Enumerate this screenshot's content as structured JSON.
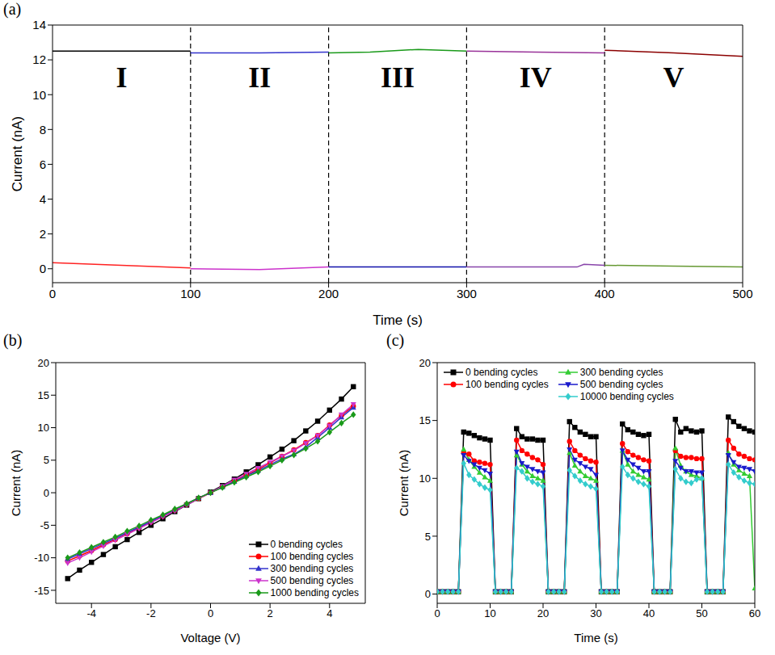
{
  "chart_data": [
    {
      "panel": "(a)",
      "type": "line",
      "x_label": "Time (s)",
      "y_label": "Current (nA)",
      "xlim": [
        0,
        500
      ],
      "xticks": [
        0,
        100,
        200,
        300,
        400,
        500
      ],
      "ylim": [
        -0.8,
        14
      ],
      "yticks": [
        0,
        2,
        4,
        6,
        8,
        10,
        12,
        14
      ],
      "dividers": [
        100,
        200,
        300,
        400
      ],
      "annotations": [
        {
          "text": "I",
          "x": 50,
          "y": 11.0
        },
        {
          "text": "II",
          "x": 150,
          "y": 11.0
        },
        {
          "text": "III",
          "x": 250,
          "y": 11.0
        },
        {
          "text": "IV",
          "x": 350,
          "y": 11.0
        },
        {
          "text": "V",
          "x": 450,
          "y": 11.0
        }
      ],
      "series": [
        {
          "color": "#000000",
          "x": [
            0,
            50,
            100
          ],
          "values": [
            12.5,
            12.5,
            12.5
          ]
        },
        {
          "color": "#3333cc",
          "x": [
            100,
            150,
            200
          ],
          "values": [
            12.4,
            12.4,
            12.45
          ]
        },
        {
          "color": "#1a9a1a",
          "x": [
            200,
            230,
            265,
            300
          ],
          "values": [
            12.4,
            12.45,
            12.6,
            12.5
          ]
        },
        {
          "color": "#993399",
          "x": [
            300,
            350,
            400
          ],
          "values": [
            12.5,
            12.45,
            12.4
          ]
        },
        {
          "color": "#8b0000",
          "x": [
            400,
            450,
            500
          ],
          "values": [
            12.55,
            12.4,
            12.2
          ]
        },
        {
          "color": "#ff2222",
          "x": [
            0,
            50,
            100
          ],
          "values": [
            0.35,
            0.2,
            0.05
          ]
        },
        {
          "color": "#cc33cc",
          "x": [
            100,
            150,
            200
          ],
          "values": [
            0.0,
            -0.05,
            0.1
          ]
        },
        {
          "color": "#1111aa",
          "x": [
            200,
            300
          ],
          "values": [
            0.1,
            0.1
          ]
        },
        {
          "color": "#8844aa",
          "x": [
            300,
            380,
            385,
            400
          ],
          "values": [
            0.1,
            0.1,
            0.25,
            0.2
          ]
        },
        {
          "color": "#669933",
          "x": [
            400,
            450,
            500
          ],
          "values": [
            0.2,
            0.15,
            0.1
          ]
        }
      ]
    },
    {
      "panel": "(b)",
      "type": "line",
      "x_label": "Voltage (V)",
      "y_label": "Current (nA)",
      "xlim": [
        -5.2,
        5.2
      ],
      "xticks": [
        -4,
        -2,
        0,
        2,
        4
      ],
      "ylim": [
        -17,
        20
      ],
      "yticks": [
        -15,
        -10,
        -5,
        0,
        5,
        10,
        15,
        20
      ],
      "legend": "lower right",
      "x": [
        -4.8,
        -4.4,
        -4.0,
        -3.6,
        -3.2,
        -2.8,
        -2.4,
        -2.0,
        -1.6,
        -1.2,
        -0.8,
        -0.4,
        0,
        0.4,
        0.8,
        1.2,
        1.6,
        2.0,
        2.4,
        2.8,
        3.2,
        3.6,
        4.0,
        4.4,
        4.8
      ],
      "series": [
        {
          "name": "0 bending cycles",
          "color": "#000000",
          "marker": "square",
          "values": [
            -13.2,
            -11.9,
            -10.7,
            -9.5,
            -8.3,
            -7.2,
            -6.1,
            -5.0,
            -4.0,
            -2.9,
            -1.9,
            -0.9,
            0.1,
            1.1,
            2.1,
            3.2,
            4.3,
            5.5,
            6.7,
            8.0,
            9.5,
            11.0,
            12.7,
            14.4,
            16.3
          ]
        },
        {
          "name": "100 bending cycles",
          "color": "#ff0000",
          "marker": "circle",
          "values": [
            -10.5,
            -9.7,
            -8.9,
            -8.0,
            -7.2,
            -6.3,
            -5.4,
            -4.5,
            -3.6,
            -2.7,
            -1.8,
            -0.9,
            0,
            0.9,
            1.8,
            2.7,
            3.6,
            4.6,
            5.6,
            6.6,
            7.7,
            8.8,
            10.4,
            11.9,
            13.3
          ]
        },
        {
          "name": "300 bending cycles",
          "color": "#3333cc",
          "marker": "triangle-up",
          "values": [
            -10.2,
            -9.4,
            -8.6,
            -7.8,
            -7.0,
            -6.1,
            -5.3,
            -4.4,
            -3.5,
            -2.6,
            -1.7,
            -0.8,
            0,
            0.9,
            1.7,
            2.6,
            3.4,
            4.3,
            5.2,
            5.9,
            7.0,
            8.5,
            10.0,
            11.6,
            13.1
          ]
        },
        {
          "name": "500 bending cycles",
          "color": "#cc33cc",
          "marker": "triangle-down",
          "values": [
            -10.8,
            -10.0,
            -9.1,
            -8.2,
            -7.3,
            -6.4,
            -5.5,
            -4.6,
            -3.7,
            -2.8,
            -1.9,
            -0.9,
            0,
            1.0,
            2.0,
            2.9,
            3.8,
            4.7,
            5.6,
            6.5,
            7.6,
            8.8,
            10.3,
            12.0,
            13.6
          ]
        },
        {
          "name": "1000 bending cycles",
          "color": "#1a9a1a",
          "marker": "diamond",
          "values": [
            -10.0,
            -9.2,
            -8.4,
            -7.6,
            -6.8,
            -5.9,
            -5.1,
            -4.2,
            -3.4,
            -2.5,
            -1.7,
            -0.8,
            0,
            0.8,
            1.6,
            2.4,
            3.2,
            4.1,
            5.0,
            5.8,
            6.8,
            7.9,
            9.3,
            10.7,
            12.0
          ]
        }
      ]
    },
    {
      "panel": "(c)",
      "type": "line",
      "x_label": "Time (s)",
      "y_label": "Current (nA)",
      "xlim": [
        0,
        60
      ],
      "xticks": [
        0,
        10,
        20,
        30,
        40,
        50,
        60
      ],
      "ylim": [
        -0.8,
        20
      ],
      "yticks": [
        0,
        5,
        10,
        15,
        20
      ],
      "legend": "upper left",
      "x": [
        0,
        1,
        2,
        3,
        4,
        5,
        6,
        7,
        8,
        9,
        10,
        11,
        12,
        13,
        14,
        15,
        16,
        17,
        18,
        19,
        20,
        21,
        22,
        23,
        24,
        25,
        26,
        27,
        28,
        29,
        30,
        31,
        32,
        33,
        34,
        35,
        36,
        37,
        38,
        39,
        40,
        41,
        42,
        43,
        44,
        45,
        46,
        47,
        48,
        49,
        50,
        51,
        52,
        53,
        54,
        55,
        56,
        57,
        58,
        59,
        60
      ],
      "series": [
        {
          "name": "0 bending cycles",
          "color": "#000000",
          "marker": "square",
          "values": [
            0.2,
            0.2,
            0.2,
            0.2,
            0.2,
            14.0,
            13.9,
            13.7,
            13.5,
            13.4,
            13.3,
            0.2,
            0.2,
            0.2,
            0.2,
            14.3,
            13.6,
            13.4,
            13.4,
            13.3,
            13.3,
            0.2,
            0.2,
            0.2,
            0.2,
            14.9,
            14.4,
            14.0,
            13.8,
            13.6,
            13.6,
            0.2,
            0.2,
            0.2,
            0.2,
            14.7,
            14.2,
            14.0,
            13.8,
            13.7,
            13.8,
            0.2,
            0.2,
            0.2,
            0.2,
            15.1,
            14.0,
            14.3,
            14.1,
            14.0,
            14.1,
            0.2,
            0.2,
            0.2,
            0.2,
            15.3,
            14.9,
            14.5,
            14.3,
            14.1,
            14.0
          ]
        },
        {
          "name": "100 bending cycles",
          "color": "#ff0000",
          "marker": "circle",
          "values": [
            0.2,
            0.2,
            0.2,
            0.2,
            0.2,
            12.2,
            12.1,
            11.5,
            11.4,
            11.3,
            11.2,
            0.2,
            0.2,
            0.2,
            0.2,
            13.3,
            12.4,
            12.1,
            11.8,
            11.6,
            11.2,
            0.2,
            0.2,
            0.2,
            0.2,
            13.2,
            12.4,
            12.0,
            11.7,
            11.5,
            11.4,
            0.2,
            0.2,
            0.2,
            0.2,
            13.0,
            12.3,
            12.0,
            11.8,
            11.6,
            11.5,
            0.2,
            0.2,
            0.2,
            0.2,
            12.4,
            11.9,
            11.8,
            11.8,
            11.7,
            11.7,
            0.2,
            0.2,
            0.2,
            0.2,
            13.3,
            12.6,
            12.1,
            11.9,
            11.7,
            11.6
          ]
        },
        {
          "name": "300 bending cycles",
          "color": "#33cc33",
          "marker": "triangle-up",
          "values": [
            0.2,
            0.2,
            0.2,
            0.2,
            0.2,
            12.5,
            11.6,
            11.0,
            10.5,
            10.1,
            9.8,
            0.2,
            0.2,
            0.2,
            0.2,
            12.0,
            11.2,
            10.6,
            10.2,
            10.0,
            9.8,
            0.2,
            0.2,
            0.2,
            0.2,
            12.2,
            11.1,
            10.6,
            10.2,
            10.0,
            9.8,
            0.2,
            0.2,
            0.2,
            0.2,
            12.4,
            11.2,
            10.6,
            10.3,
            10.1,
            9.9,
            0.2,
            0.2,
            0.2,
            0.2,
            12.6,
            11.1,
            10.6,
            10.3,
            10.2,
            10.0,
            0.2,
            0.2,
            0.2,
            0.2,
            12.2,
            11.2,
            10.7,
            10.4,
            10.2,
            0.5
          ]
        },
        {
          "name": "500 bending cycles",
          "color": "#1a1acc",
          "marker": "triangle-down",
          "values": [
            0.2,
            0.2,
            0.2,
            0.2,
            0.2,
            12.0,
            11.5,
            11.2,
            10.9,
            10.7,
            10.4,
            0.2,
            0.2,
            0.2,
            0.2,
            12.3,
            11.3,
            11.0,
            10.8,
            10.6,
            10.5,
            0.2,
            0.2,
            0.2,
            0.2,
            12.5,
            11.6,
            11.3,
            11.0,
            10.8,
            10.3,
            0.2,
            0.2,
            0.2,
            0.2,
            12.4,
            11.6,
            11.2,
            10.9,
            10.6,
            10.6,
            0.2,
            0.2,
            0.2,
            0.2,
            11.5,
            10.9,
            10.6,
            10.6,
            10.5,
            10.5,
            0.2,
            0.2,
            0.2,
            0.2,
            12.0,
            11.4,
            11.0,
            10.9,
            10.8,
            10.6
          ]
        },
        {
          "name": "10000 bending cycles",
          "color": "#33cccc",
          "marker": "diamond",
          "values": [
            0.2,
            0.2,
            0.2,
            0.2,
            0.2,
            11.3,
            10.3,
            9.9,
            9.5,
            9.2,
            9.0,
            0.2,
            0.2,
            0.2,
            0.2,
            10.9,
            10.6,
            10.0,
            9.7,
            9.5,
            9.3,
            0.2,
            0.2,
            0.2,
            0.2,
            10.7,
            10.2,
            9.8,
            9.5,
            9.3,
            9.1,
            0.2,
            0.2,
            0.2,
            0.2,
            11.0,
            10.3,
            10.0,
            9.7,
            9.5,
            9.3,
            0.2,
            0.2,
            0.2,
            0.2,
            10.8,
            10.0,
            9.7,
            9.6,
            9.9,
            10.0,
            0.2,
            0.2,
            0.2,
            0.2,
            11.2,
            10.5,
            10.1,
            9.8,
            9.6,
            9.5
          ]
        }
      ]
    }
  ]
}
